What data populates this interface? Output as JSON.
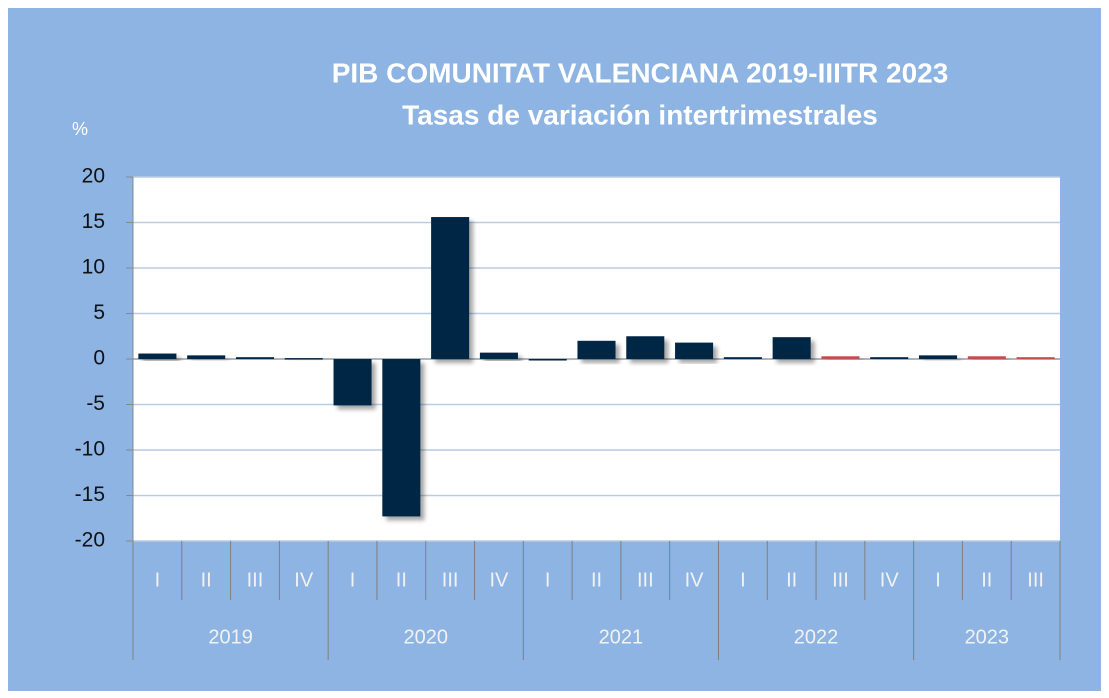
{
  "chart_data": {
    "type": "bar",
    "title": "PIB  COMUNITAT VALENCIANA 2019-IIITR 2023",
    "subtitle": "Tasas de variación intertrimestrales",
    "y_label": "%",
    "groups": [
      {
        "name": "2019",
        "categories": [
          "I",
          "II",
          "III",
          "IV"
        ]
      },
      {
        "name": "2020",
        "categories": [
          "I",
          "II",
          "III",
          "IV"
        ]
      },
      {
        "name": "2021",
        "categories": [
          "I",
          "II",
          "III",
          "IV"
        ]
      },
      {
        "name": "2022",
        "categories": [
          "I",
          "II",
          "III",
          "IV"
        ]
      },
      {
        "name": "2023",
        "categories": [
          "I",
          "II",
          "III"
        ]
      }
    ],
    "values": [
      0.6,
      0.4,
      0.2,
      0.1,
      -5.1,
      -17.3,
      15.6,
      0.7,
      0.0,
      2.0,
      2.5,
      1.8,
      0.2,
      2.4,
      0.3,
      0.2,
      0.4,
      0.3,
      0.2
    ],
    "colors": [
      "#002845",
      "#002845",
      "#002845",
      "#002845",
      "#002845",
      "#002845",
      "#002845",
      "#002845",
      "#002845",
      "#002845",
      "#002845",
      "#002845",
      "#002845",
      "#002845",
      "#c0504d",
      "#002845",
      "#002845",
      "#c0504d",
      "#c0504d"
    ],
    "ylim": [
      -20,
      20
    ],
    "yticks": [
      -20,
      -15,
      -10,
      -5,
      0,
      5,
      10,
      15,
      20
    ],
    "grid": true
  }
}
